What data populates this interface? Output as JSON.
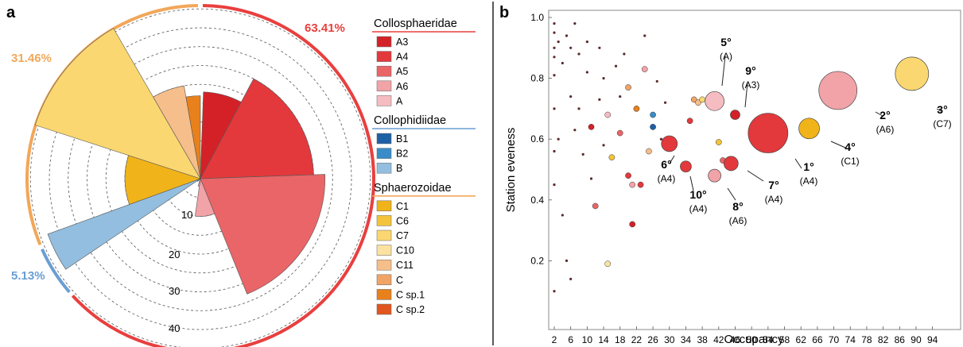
{
  "panel_a": {
    "label": "a",
    "ring_percents": [
      {
        "text": "63.41%",
        "color": "#e8403f"
      },
      {
        "text": "31.46%",
        "color": "#f2a75a"
      },
      {
        "text": "5.13%",
        "color": "#6a9ed4"
      }
    ],
    "radial_ticks": [
      "10",
      "20",
      "30",
      "40"
    ],
    "legend": [
      {
        "family": "Collosphaeridae",
        "color": "#e8403f",
        "items": [
          {
            "label": "A3",
            "color": "#d42128"
          },
          {
            "label": "A4",
            "color": "#e3393c"
          },
          {
            "label": "A5",
            "color": "#e96567"
          },
          {
            "label": "A6",
            "color": "#f1a3a8"
          },
          {
            "label": "A",
            "color": "#f5bcc1"
          }
        ]
      },
      {
        "family": "Collophidiidae",
        "color": "#6a9ed4",
        "items": [
          {
            "label": "B1",
            "color": "#1f5fa5"
          },
          {
            "label": "B2",
            "color": "#3a8cc9"
          },
          {
            "label": "B",
            "color": "#93bedf"
          }
        ]
      },
      {
        "family": "Sphaerozoidae",
        "color": "#f2a75a",
        "items": [
          {
            "label": "C1",
            "color": "#f1b31a"
          },
          {
            "label": "C6",
            "color": "#f3c43b"
          },
          {
            "label": "C7",
            "color": "#fad770"
          },
          {
            "label": "C10",
            "color": "#fbe2a0"
          },
          {
            "label": "C11",
            "color": "#f6be8b"
          },
          {
            "label": "C",
            "color": "#f0a466"
          },
          {
            "label": "C sp.1",
            "color": "#e8801c"
          },
          {
            "label": "C sp.2",
            "color": "#e1561f"
          }
        ]
      }
    ]
  },
  "panel_b": {
    "label": "b",
    "annotations": [
      {
        "rank": "1°",
        "clade": "(A4)"
      },
      {
        "rank": "2°",
        "clade": "(A6)"
      },
      {
        "rank": "3°",
        "clade": "(C7)"
      },
      {
        "rank": "4°",
        "clade": "(C1)"
      },
      {
        "rank": "5°",
        "clade": "(A)"
      },
      {
        "rank": "6°",
        "clade": "(A4)"
      },
      {
        "rank": "7°",
        "clade": "(A4)"
      },
      {
        "rank": "8°",
        "clade": "(A6)"
      },
      {
        "rank": "9°",
        "clade": "(A3)"
      },
      {
        "rank": "10°",
        "clade": "(A4)"
      }
    ]
  },
  "chart_data": [
    {
      "type": "pie",
      "subtype": "polar-area",
      "ring_groups": [
        {
          "name": "Collosphaeridae",
          "percent": 63.41
        },
        {
          "name": "Sphaerozoidae",
          "percent": 31.46
        },
        {
          "name": "Collophidiidae",
          "percent": 5.13
        }
      ],
      "categories": [
        "A3",
        "A4",
        "A5",
        "A6",
        "A",
        "B1",
        "B2",
        "B",
        "C1",
        "C6",
        "C7",
        "C10",
        "C11",
        "C",
        "C sp.1",
        "C sp.2"
      ],
      "values": [
        23,
        30,
        33,
        10,
        2,
        1,
        1,
        43,
        20,
        0,
        46,
        0,
        25,
        0,
        22,
        0
      ],
      "rlim": [
        0,
        45
      ],
      "r_ticks": [
        10,
        20,
        30,
        40
      ],
      "grid": true
    },
    {
      "type": "scatter",
      "xlabel": "Occupancy",
      "ylabel": "Station eveness",
      "xlim": [
        0,
        96
      ],
      "ylim": [
        0.05,
        1.03
      ],
      "x_ticks": [
        "2",
        "6",
        "10",
        "14",
        "18",
        "22",
        "26",
        "30",
        "34",
        "38",
        "42",
        "46",
        "50",
        "54",
        "58",
        "62",
        "66",
        "70",
        "74",
        "78",
        "82",
        "86",
        "90",
        "94"
      ],
      "y_ticks": [
        "0.2",
        "0.4",
        "0.6",
        "0.8",
        "1.0"
      ],
      "highlighted_points": [
        {
          "rank": "1°",
          "clade": "A4",
          "x": 54,
          "y": 0.62,
          "color": "#e3393c"
        },
        {
          "rank": "2°",
          "clade": "A6",
          "x": 71,
          "y": 0.76,
          "color": "#f1a3a8"
        },
        {
          "rank": "3°",
          "clade": "C7",
          "x": 89,
          "y": 0.815,
          "color": "#fad770"
        },
        {
          "rank": "4°",
          "clade": "C1",
          "x": 64,
          "y": 0.635,
          "color": "#f1b31a"
        },
        {
          "rank": "5°",
          "clade": "A",
          "x": 41,
          "y": 0.725,
          "color": "#f5bcc1"
        },
        {
          "rank": "6°",
          "clade": "A4",
          "x": 30,
          "y": 0.585,
          "color": "#e3393c"
        },
        {
          "rank": "7°",
          "clade": "A4",
          "x": 45,
          "y": 0.52,
          "color": "#e3393c"
        },
        {
          "rank": "8°",
          "clade": "A6",
          "x": 41,
          "y": 0.48,
          "color": "#f1a3a8"
        },
        {
          "rank": "9°",
          "clade": "A3",
          "x": 46,
          "y": 0.68,
          "color": "#d42128"
        },
        {
          "rank": "10°",
          "clade": "A4",
          "x": 34,
          "y": 0.51,
          "color": "#e3393c"
        }
      ],
      "other_points": [
        {
          "x": 2,
          "y": 0.98
        },
        {
          "x": 2,
          "y": 0.95
        },
        {
          "x": 2,
          "y": 0.9
        },
        {
          "x": 2,
          "y": 0.87
        },
        {
          "x": 2,
          "y": 0.81
        },
        {
          "x": 2,
          "y": 0.7
        },
        {
          "x": 2,
          "y": 0.56
        },
        {
          "x": 2,
          "y": 0.45
        },
        {
          "x": 2,
          "y": 0.1
        },
        {
          "x": 3,
          "y": 0.92
        },
        {
          "x": 3,
          "y": 0.6
        },
        {
          "x": 4,
          "y": 0.85
        },
        {
          "x": 4,
          "y": 0.35
        },
        {
          "x": 5,
          "y": 0.94
        },
        {
          "x": 5,
          "y": 0.2
        },
        {
          "x": 6,
          "y": 0.9
        },
        {
          "x": 6,
          "y": 0.74
        },
        {
          "x": 6,
          "y": 0.14
        },
        {
          "x": 7,
          "y": 0.98
        },
        {
          "x": 7,
          "y": 0.63
        },
        {
          "x": 8,
          "y": 0.88
        },
        {
          "x": 8,
          "y": 0.7
        },
        {
          "x": 9,
          "y": 0.55
        },
        {
          "x": 10,
          "y": 0.92
        },
        {
          "x": 10,
          "y": 0.82
        },
        {
          "x": 11,
          "y": 0.64,
          "color": "#d42128"
        },
        {
          "x": 11,
          "y": 0.47
        },
        {
          "x": 12,
          "y": 0.38,
          "color": "#e96567"
        },
        {
          "x": 13,
          "y": 0.9
        },
        {
          "x": 13,
          "y": 0.73
        },
        {
          "x": 14,
          "y": 0.58
        },
        {
          "x": 14,
          "y": 0.8
        },
        {
          "x": 15,
          "y": 0.68,
          "color": "#f5bcc1"
        },
        {
          "x": 15,
          "y": 0.19,
          "color": "#fbe2a0"
        },
        {
          "x": 16,
          "y": 0.54,
          "color": "#f3c43b"
        },
        {
          "x": 17,
          "y": 0.84
        },
        {
          "x": 18,
          "y": 0.62,
          "color": "#e96567"
        },
        {
          "x": 18,
          "y": 0.74
        },
        {
          "x": 19,
          "y": 0.88
        },
        {
          "x": 20,
          "y": 0.77,
          "color": "#f0a466"
        },
        {
          "x": 20,
          "y": 0.48,
          "color": "#e3393c"
        },
        {
          "x": 21,
          "y": 0.45,
          "color": "#f1a3a8"
        },
        {
          "x": 21,
          "y": 0.32,
          "color": "#d42128"
        },
        {
          "x": 22,
          "y": 0.7,
          "color": "#e8801c"
        },
        {
          "x": 23,
          "y": 0.45,
          "color": "#e3393c"
        },
        {
          "x": 24,
          "y": 0.94
        },
        {
          "x": 24,
          "y": 0.83,
          "color": "#f1a3a8"
        },
        {
          "x": 25,
          "y": 0.56,
          "color": "#f6be8b"
        },
        {
          "x": 26,
          "y": 0.68,
          "color": "#3a8cc9"
        },
        {
          "x": 26,
          "y": 0.64,
          "color": "#1f5fa5"
        },
        {
          "x": 27,
          "y": 0.79
        },
        {
          "x": 28,
          "y": 0.6
        },
        {
          "x": 29,
          "y": 0.72
        },
        {
          "x": 36,
          "y": 0.73,
          "color": "#f0a466"
        },
        {
          "x": 37,
          "y": 0.72,
          "color": "#f6be8b"
        },
        {
          "x": 38,
          "y": 0.73,
          "color": "#fad770"
        },
        {
          "x": 35,
          "y": 0.66,
          "color": "#e3393c"
        },
        {
          "x": 42,
          "y": 0.59,
          "color": "#f3c43b"
        },
        {
          "x": 43,
          "y": 0.53,
          "color": "#e96567"
        }
      ]
    }
  ]
}
